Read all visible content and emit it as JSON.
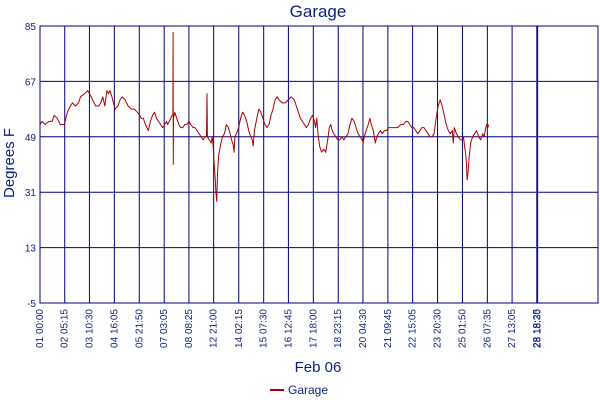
{
  "chart_data": {
    "type": "line",
    "title": "Garage",
    "ylabel": "Degrees F",
    "xlabel": "Feb 06",
    "ylim": [
      -5,
      85
    ],
    "yticks": [
      -5,
      13,
      31,
      49,
      67,
      85
    ],
    "grid": true,
    "legend_position": "bottom-center",
    "line_color": "#aa0000",
    "grid_color": "#000080",
    "text_color": "#0b1f7a",
    "xrange": [
      0,
      27.54
    ],
    "x_ticks": [
      {
        "value": 0.0,
        "label": "01 00:00"
      },
      {
        "value": 1.22,
        "label": "02 05:15"
      },
      {
        "value": 2.44,
        "label": "03 10:30"
      },
      {
        "value": 3.67,
        "label": "04 16:05"
      },
      {
        "value": 4.9,
        "label": "05 21:50"
      },
      {
        "value": 6.13,
        "label": "07 03:05"
      },
      {
        "value": 7.35,
        "label": "08 08:25"
      },
      {
        "value": 8.57,
        "label": "12 21:00"
      },
      {
        "value": 9.81,
        "label": "14 02:15"
      },
      {
        "value": 11.04,
        "label": "15 07:30"
      },
      {
        "value": 12.26,
        "label": "16 12:45"
      },
      {
        "value": 13.49,
        "label": "17 18:00"
      },
      {
        "value": 14.72,
        "label": "18 23:15"
      },
      {
        "value": 15.94,
        "label": "20 04:30"
      },
      {
        "value": 17.17,
        "label": "21 09:45"
      },
      {
        "value": 18.39,
        "label": "22 15:05"
      },
      {
        "value": 19.62,
        "label": "23 20:30"
      },
      {
        "value": 20.85,
        "label": "25 01:50"
      },
      {
        "value": 22.08,
        "label": "26 07:35"
      },
      {
        "value": 23.3,
        "label": "27 13:05"
      },
      {
        "value": 24.52,
        "label": "28 18:25"
      },
      {
        "value": 24.56,
        "label": "28 18:30"
      }
    ],
    "series": [
      {
        "name": "Garage",
        "points": [
          [
            0.0,
            53
          ],
          [
            0.1,
            54
          ],
          [
            0.25,
            53
          ],
          [
            0.45,
            54
          ],
          [
            0.6,
            54
          ],
          [
            0.7,
            56
          ],
          [
            0.85,
            55
          ],
          [
            1.0,
            53
          ],
          [
            1.1,
            53
          ],
          [
            1.2,
            53
          ],
          [
            1.35,
            57
          ],
          [
            1.5,
            59
          ],
          [
            1.6,
            60
          ],
          [
            1.75,
            59
          ],
          [
            1.9,
            60
          ],
          [
            2.0,
            62
          ],
          [
            2.2,
            63
          ],
          [
            2.35,
            64
          ],
          [
            2.45,
            63
          ],
          [
            2.6,
            61
          ],
          [
            2.75,
            59
          ],
          [
            2.9,
            59
          ],
          [
            3.0,
            60
          ],
          [
            3.1,
            62
          ],
          [
            3.2,
            59
          ],
          [
            3.3,
            64
          ],
          [
            3.38,
            63
          ],
          [
            3.45,
            64
          ],
          [
            3.55,
            62
          ],
          [
            3.7,
            58
          ],
          [
            3.85,
            59
          ],
          [
            3.95,
            61
          ],
          [
            4.05,
            62
          ],
          [
            4.2,
            61
          ],
          [
            4.35,
            59
          ],
          [
            4.5,
            58
          ],
          [
            4.65,
            58
          ],
          [
            4.8,
            57
          ],
          [
            4.92,
            56
          ],
          [
            5.0,
            55
          ],
          [
            5.1,
            55
          ],
          [
            5.2,
            53
          ],
          [
            5.28,
            52
          ],
          [
            5.35,
            51
          ],
          [
            5.45,
            54
          ],
          [
            5.55,
            56
          ],
          [
            5.65,
            57
          ],
          [
            5.75,
            55
          ],
          [
            5.85,
            54
          ],
          [
            5.95,
            53
          ],
          [
            6.05,
            52
          ],
          [
            6.15,
            53
          ],
          [
            6.25,
            54
          ],
          [
            6.3,
            53
          ],
          [
            6.38,
            54
          ],
          [
            6.45,
            55
          ],
          [
            6.52,
            56
          ],
          [
            6.56,
            56
          ],
          [
            6.57,
            83
          ],
          [
            6.58,
            40
          ],
          [
            6.59,
            55
          ],
          [
            6.65,
            57
          ],
          [
            6.75,
            55
          ],
          [
            6.85,
            53
          ],
          [
            6.95,
            52
          ],
          [
            7.05,
            52
          ],
          [
            7.15,
            53
          ],
          [
            7.25,
            53
          ],
          [
            7.35,
            54
          ],
          [
            7.45,
            53
          ],
          [
            7.55,
            52
          ],
          [
            7.65,
            52
          ],
          [
            7.75,
            51
          ],
          [
            7.85,
            50
          ],
          [
            7.95,
            49
          ],
          [
            8.05,
            48
          ],
          [
            8.15,
            49
          ],
          [
            8.22,
            49
          ],
          [
            8.24,
            63
          ],
          [
            8.26,
            49
          ],
          [
            8.35,
            48
          ],
          [
            8.45,
            47
          ],
          [
            8.5,
            49
          ],
          [
            8.55,
            46
          ],
          [
            8.6,
            40
          ],
          [
            8.65,
            35
          ],
          [
            8.68,
            31
          ],
          [
            8.72,
            28
          ],
          [
            8.76,
            37
          ],
          [
            8.82,
            43
          ],
          [
            8.9,
            46
          ],
          [
            9.0,
            49
          ],
          [
            9.1,
            50
          ],
          [
            9.2,
            53
          ],
          [
            9.3,
            52
          ],
          [
            9.38,
            50
          ],
          [
            9.45,
            48
          ],
          [
            9.55,
            46
          ],
          [
            9.58,
            44
          ],
          [
            9.62,
            49
          ],
          [
            9.7,
            50
          ],
          [
            9.8,
            52
          ],
          [
            9.9,
            55
          ],
          [
            10.0,
            57
          ],
          [
            10.1,
            56
          ],
          [
            10.2,
            54
          ],
          [
            10.3,
            51
          ],
          [
            10.4,
            49
          ],
          [
            10.48,
            48
          ],
          [
            10.52,
            46
          ],
          [
            10.58,
            51
          ],
          [
            10.7,
            55
          ],
          [
            10.8,
            58
          ],
          [
            10.9,
            57
          ],
          [
            11.0,
            55
          ],
          [
            11.1,
            53
          ],
          [
            11.2,
            52
          ],
          [
            11.3,
            53
          ],
          [
            11.4,
            56
          ],
          [
            11.5,
            58
          ],
          [
            11.6,
            61
          ],
          [
            11.7,
            62
          ],
          [
            11.8,
            61
          ],
          [
            11.95,
            60
          ],
          [
            12.1,
            60
          ],
          [
            12.25,
            61
          ],
          [
            12.4,
            62
          ],
          [
            12.55,
            61
          ],
          [
            12.65,
            59
          ],
          [
            12.75,
            57
          ],
          [
            12.85,
            55
          ],
          [
            12.95,
            54
          ],
          [
            13.05,
            53
          ],
          [
            13.15,
            52
          ],
          [
            13.25,
            53
          ],
          [
            13.35,
            55
          ],
          [
            13.45,
            56
          ],
          [
            13.55,
            54
          ],
          [
            13.6,
            52
          ],
          [
            13.66,
            55
          ],
          [
            13.72,
            50
          ],
          [
            13.8,
            46
          ],
          [
            13.9,
            44
          ],
          [
            14.0,
            45
          ],
          [
            14.1,
            44
          ],
          [
            14.2,
            48
          ],
          [
            14.28,
            52
          ],
          [
            14.35,
            53
          ],
          [
            14.42,
            51
          ],
          [
            14.5,
            50
          ],
          [
            14.6,
            49
          ],
          [
            14.7,
            48
          ],
          [
            14.8,
            48
          ],
          [
            14.9,
            49
          ],
          [
            15.0,
            48
          ],
          [
            15.1,
            49
          ],
          [
            15.2,
            50
          ],
          [
            15.3,
            53
          ],
          [
            15.4,
            55
          ],
          [
            15.5,
            54
          ],
          [
            15.6,
            52
          ],
          [
            15.7,
            50
          ],
          [
            15.8,
            49
          ],
          [
            15.9,
            48
          ],
          [
            15.95,
            47
          ],
          [
            16.0,
            49
          ],
          [
            16.1,
            51
          ],
          [
            16.2,
            53
          ],
          [
            16.28,
            55
          ],
          [
            16.35,
            53
          ],
          [
            16.45,
            51
          ],
          [
            16.5,
            49
          ],
          [
            16.55,
            47
          ],
          [
            16.62,
            49
          ],
          [
            16.7,
            50
          ],
          [
            16.8,
            51
          ],
          [
            16.9,
            50
          ],
          [
            17.0,
            51
          ],
          [
            17.1,
            51
          ],
          [
            17.2,
            52
          ],
          [
            17.35,
            52
          ],
          [
            17.5,
            52
          ],
          [
            17.65,
            52
          ],
          [
            17.8,
            53
          ],
          [
            17.95,
            53
          ],
          [
            18.05,
            54
          ],
          [
            18.15,
            54
          ],
          [
            18.25,
            53
          ],
          [
            18.35,
            52
          ],
          [
            18.45,
            52
          ],
          [
            18.55,
            51
          ],
          [
            18.65,
            50
          ],
          [
            18.75,
            51
          ],
          [
            18.85,
            52
          ],
          [
            18.95,
            52
          ],
          [
            19.05,
            51
          ],
          [
            19.15,
            50
          ],
          [
            19.25,
            49
          ],
          [
            19.35,
            49
          ],
          [
            19.45,
            50
          ],
          [
            19.55,
            55
          ],
          [
            19.65,
            59
          ],
          [
            19.75,
            61
          ],
          [
            19.85,
            59
          ],
          [
            19.95,
            56
          ],
          [
            20.05,
            53
          ],
          [
            20.15,
            51
          ],
          [
            20.25,
            50
          ],
          [
            20.35,
            51
          ],
          [
            20.4,
            47
          ],
          [
            20.45,
            52
          ],
          [
            20.55,
            50
          ],
          [
            20.65,
            49
          ],
          [
            20.75,
            48
          ],
          [
            20.85,
            48
          ],
          [
            20.9,
            49
          ],
          [
            20.95,
            46
          ],
          [
            21.0,
            44
          ],
          [
            21.05,
            40
          ],
          [
            21.08,
            35
          ],
          [
            21.12,
            37
          ],
          [
            21.18,
            42
          ],
          [
            21.25,
            47
          ],
          [
            21.35,
            49
          ],
          [
            21.45,
            50
          ],
          [
            21.55,
            51
          ],
          [
            21.65,
            49
          ],
          [
            21.75,
            48
          ],
          [
            21.85,
            50
          ],
          [
            21.92,
            49
          ],
          [
            22.0,
            52
          ],
          [
            22.05,
            53
          ],
          [
            22.1,
            52
          ],
          [
            22.15,
            53
          ]
        ]
      }
    ]
  }
}
